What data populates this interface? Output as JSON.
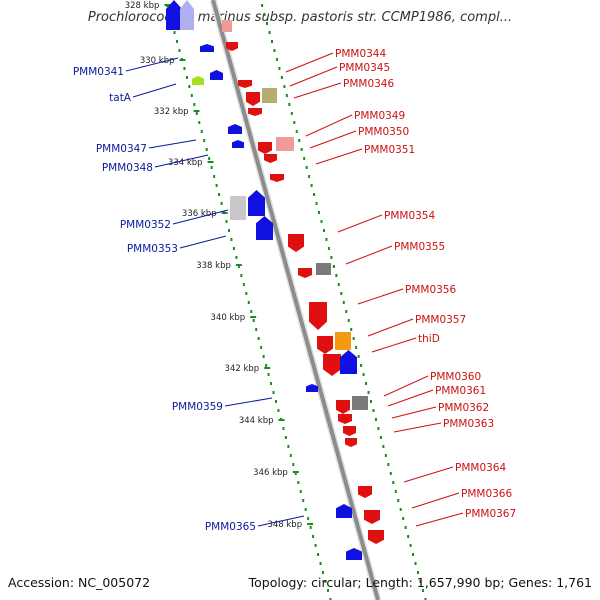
{
  "title": "Prochlorococcus marinus subsp. pastoris str. CCMP1986, compl...",
  "accession": "Accession: NC_005072",
  "summary": "Topology: circular; Length: 1,657,990 bp; Genes: 1,761",
  "colors": {
    "backbone": "#8c8c8c",
    "forward_gene": "#e01010",
    "reverse_gene": "#1010e0",
    "pseudo_gene": "#7a7a7a",
    "trna": "#b5ae70",
    "rna_light": "#f29a9a",
    "orange_gene": "#f59a10",
    "green_gene": "#a6e020",
    "grey_light": "#c8c8c8",
    "dots": "#179017",
    "left_label": "#0a1a9a",
    "right_label": "#cc1010"
  },
  "kbp_ticks": [
    "328 kbp",
    "330 kbp",
    "332 kbp",
    "334 kbp",
    "336 kbp",
    "338 kbp",
    "340 kbp",
    "342 kbp",
    "344 kbp",
    "346 kbp",
    "348 kbp"
  ],
  "left_labels": [
    "PMM0341",
    "tatA",
    "PMM0347",
    "PMM0348",
    "PMM0352",
    "PMM0353",
    "PMM0359",
    "PMM0365"
  ],
  "right_labels": [
    "PMM0344",
    "PMM0345",
    "PMM0346",
    "PMM0349",
    "PMM0350",
    "PMM0351",
    "PMM0354",
    "PMM0355",
    "PMM0356",
    "PMM0357",
    "thiD",
    "PMM0360",
    "PMM0361",
    "PMM0362",
    "PMM0363",
    "PMM0364",
    "PMM0366",
    "PMM0367"
  ]
}
